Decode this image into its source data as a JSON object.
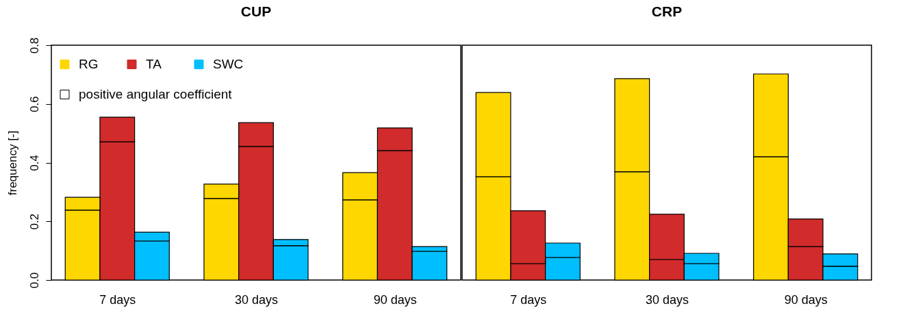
{
  "chart_data": [
    {
      "type": "bar",
      "title": "CUP",
      "ylabel": "frequency [-]",
      "stacked": true,
      "legend": "top left",
      "categories": [
        null,
        "7 days",
        null,
        null,
        "30 days",
        null,
        null,
        "90 days",
        null
      ],
      "ylim": [
        0,
        0.8
      ],
      "yticks": [
        {
          "value": 0,
          "label": "0.0"
        },
        0.2,
        0.4,
        0.6,
        0.8
      ],
      "series": [
        {
          "name": "positive angular coefficient",
          "colors": [
            "#ffd700",
            "#d12b2b",
            "#00bfff",
            "#ffd700",
            "#d12b2b",
            "#00bfff",
            "#ffd700",
            "#d12b2b",
            "#00bfff"
          ],
          "values": [
            0.238,
            0.471,
            0.133,
            0.278,
            0.455,
            0.117,
            0.273,
            0.441,
            0.098
          ]
        },
        {
          "name": "RG",
          "color": "#ffd700",
          "values": [
            0.044,
            null,
            null,
            0.049,
            null,
            null,
            0.093,
            null,
            null
          ]
        },
        {
          "name": "TA",
          "color": "#d12b2b",
          "values": [
            null,
            0.084,
            null,
            null,
            0.081,
            null,
            null,
            0.077,
            null
          ]
        },
        {
          "name": "SWC",
          "color": "#00bfff",
          "values": [
            null,
            null,
            0.03,
            null,
            null,
            0.021,
            null,
            null,
            0.016
          ]
        }
      ]
    },
    {
      "type": "bar",
      "title": "CRP",
      "stacked": true,
      "tick_labels": "x",
      "categories": [
        null,
        "7 days",
        null,
        null,
        "30 days",
        null,
        null,
        "90 days",
        null
      ],
      "ylim": [
        0,
        0.8
      ],
      "series": [
        {
          "colors": [
            "#ffd700",
            "#d12b2b",
            "#00bfff",
            "#ffd700",
            "#d12b2b",
            "#00bfff",
            "#ffd700",
            "#d12b2b",
            "#00bfff"
          ],
          "values": [
            0.352,
            0.056,
            0.077,
            0.369,
            0.07,
            0.056,
            0.42,
            0.114,
            0.047
          ]
        },
        {
          "color": "#ffd700",
          "values": [
            0.287,
            null,
            null,
            0.317,
            null,
            null,
            0.282,
            null,
            null
          ]
        },
        {
          "color": "#d12b2b",
          "values": [
            null,
            0.18,
            null,
            null,
            0.154,
            null,
            null,
            0.094,
            null
          ]
        },
        {
          "color": "#00bfff",
          "values": [
            null,
            null,
            0.049,
            null,
            null,
            0.035,
            null,
            null,
            0.042
          ]
        }
      ]
    }
  ]
}
